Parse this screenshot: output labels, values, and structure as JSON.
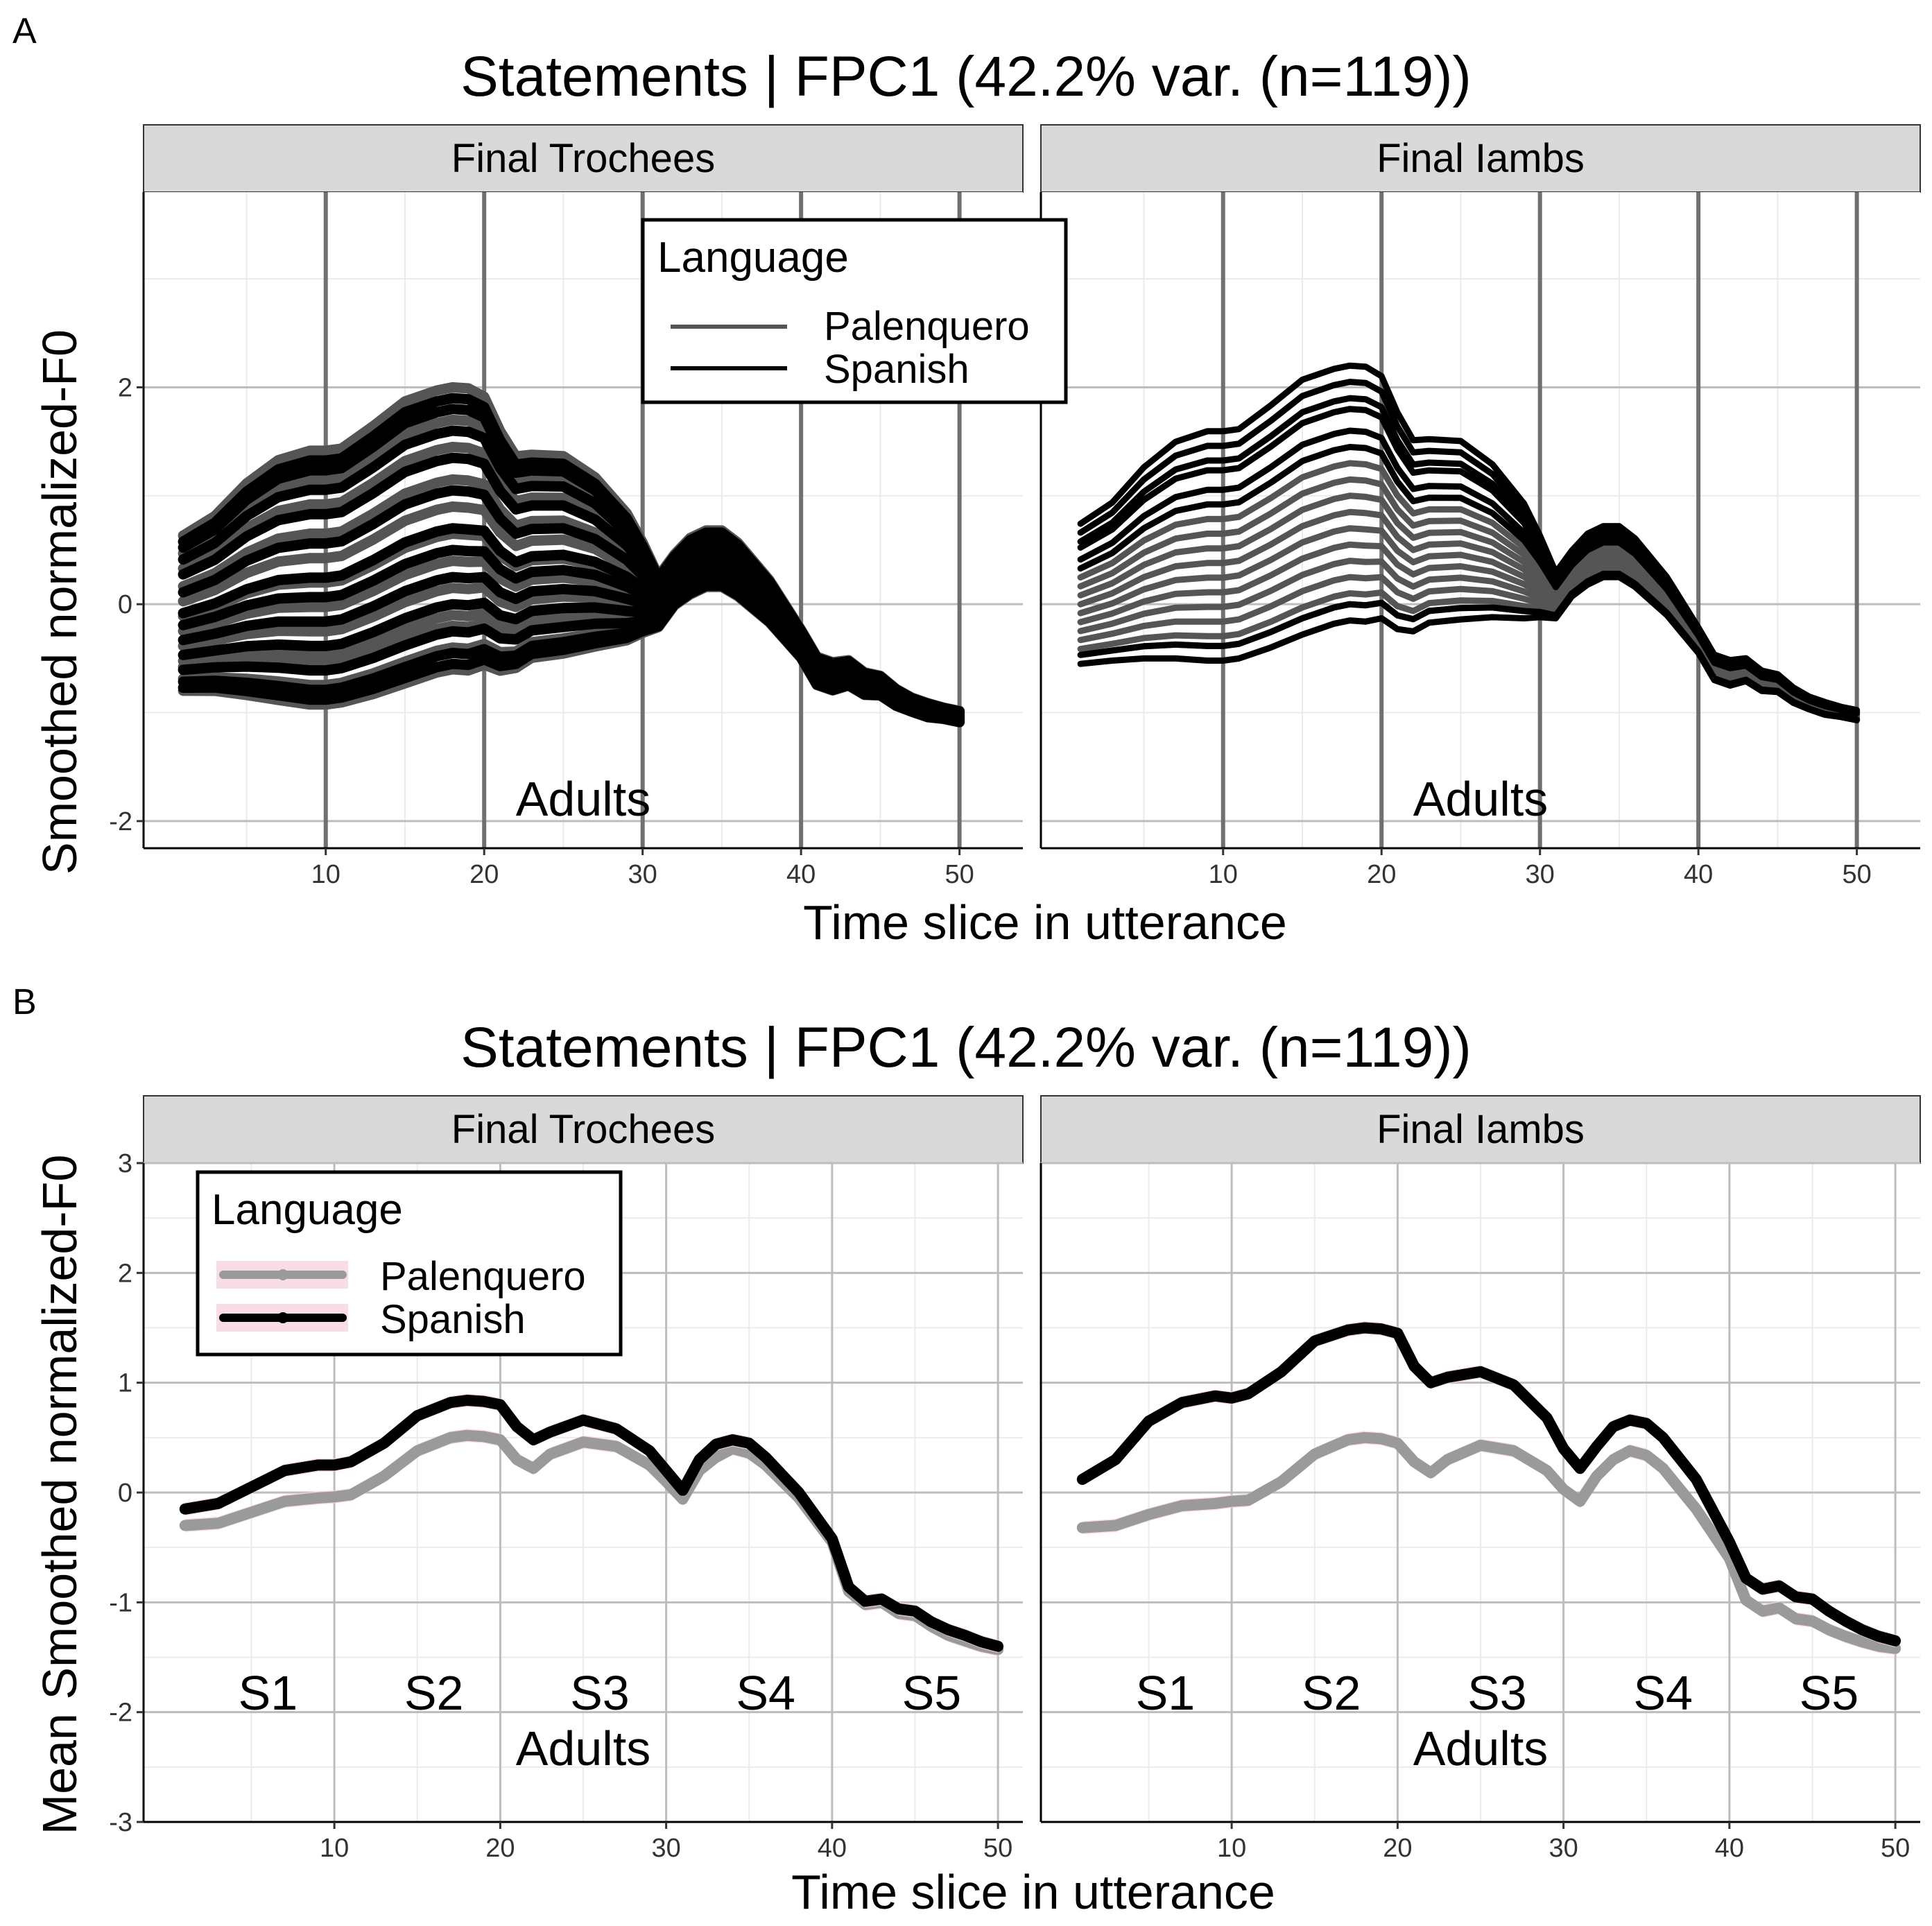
{
  "colors": {
    "palenquero": "#555555",
    "spanish": "#000000",
    "palenquero_mean": "#9a9a9a",
    "ribbon": "#f7d3df",
    "strip": "#d9d9d9",
    "grid_major": "#bdbdbd",
    "grid_minor": "#ebebeb",
    "slice_line": "#707070"
  },
  "panel_a": {
    "tag": "A",
    "title": "Statements | FPC1 (42.2% var. (n=119))",
    "xlabel": "Time slice in utterance",
    "ylabel": "Smoothed normalized-F0",
    "facets": [
      "Final Trochees",
      "Final Iambs"
    ],
    "annotation": "Adults",
    "legend": {
      "title": "Language",
      "items": [
        "Palenquero",
        "Spanish"
      ]
    }
  },
  "panel_b": {
    "tag": "B",
    "title": "Statements | FPC1 (42.2% var. (n=119))",
    "xlabel": "Time slice in utterance",
    "ylabel": "Mean Smoothed normalized-F0",
    "facets": [
      "Final Trochees",
      "Final Iambs"
    ],
    "annotation": "Adults",
    "syllables": [
      "S1",
      "S2",
      "S3",
      "S4",
      "S5"
    ],
    "legend": {
      "title": "Language",
      "items": [
        "Palenquero",
        "Spanish"
      ]
    }
  },
  "chart_data": [
    {
      "type": "line",
      "title": "Statements | FPC1 (42.2% var. (n=119))",
      "xlabel": "Time slice in utterance",
      "ylabel": "Smoothed normalized-F0",
      "xlim": [
        -1.5,
        54
      ],
      "ylim": [
        -2.25,
        3.8
      ],
      "xticks": [
        10,
        20,
        30,
        40,
        50
      ],
      "yticks": [
        -2,
        0,
        2
      ],
      "vlines": [
        10,
        20,
        30,
        40,
        50
      ],
      "facets": [
        "Final Trochees",
        "Final Iambs"
      ],
      "template": {
        "x": [
          1,
          3,
          5,
          7,
          9,
          10,
          11,
          13,
          15,
          17,
          18,
          19,
          20,
          21,
          22,
          23,
          25,
          27,
          29,
          30,
          31,
          32,
          33,
          34,
          35,
          36,
          38,
          40,
          41,
          42,
          43,
          44,
          45,
          46,
          47,
          48,
          49,
          50
        ],
        "base": [
          0,
          0.1,
          0.25,
          0.35,
          0.38,
          0.38,
          0.4,
          0.55,
          0.72,
          0.82,
          0.85,
          0.84,
          0.82,
          0.62,
          0.5,
          0.55,
          0.56,
          0.48,
          0.32,
          0.2,
          0.05,
          0.25,
          0.38,
          0.45,
          0.45,
          0.35,
          0.05,
          -0.35,
          -0.6,
          -0.65,
          -0.62,
          -0.72,
          -0.74,
          -0.85,
          -0.92,
          -0.97,
          -1.0,
          -1.03
        ],
        "amp": [
          0.55,
          0.62,
          0.75,
          0.85,
          0.9,
          0.9,
          0.9,
          0.95,
          1.0,
          1.0,
          1.0,
          1.0,
          0.95,
          0.85,
          0.75,
          0.72,
          0.7,
          0.6,
          0.45,
          0.32,
          0.18,
          0.18,
          0.2,
          0.2,
          0.2,
          0.19,
          0.15,
          0.1,
          0.1,
          0.1,
          0.09,
          0.08,
          0.07,
          0.06,
          0.05,
          0.05,
          0.04,
          0.04
        ]
      },
      "curves": [
        {
          "facet": "Final Trochees",
          "series": [
            {
              "name": "Palenquero",
              "fpc_scores": [
                1.15,
                0.85,
                0.6,
                0.3,
                0.05,
                -0.2,
                -0.45,
                -0.7,
                -0.95,
                -1.05,
                -1.25,
                -1.45
              ]
            },
            {
              "name": "Spanish",
              "fpc_scores": [
                1.05,
                0.95,
                0.75,
                0.5,
                0.2,
                -0.15,
                -0.35,
                -0.6,
                -0.85,
                -1.1,
                -1.3,
                -1.4
              ]
            }
          ]
        },
        {
          "facet": "Final Iambs",
          "series": [
            {
              "name": "Palenquero",
              "fpc_scores": [
                0.45,
                0.3,
                0.15,
                0.0,
                -0.15,
                -0.3,
                -0.45,
                -0.6,
                -0.75,
                -0.85
              ]
            },
            {
              "name": "Spanish",
              "fpc_scores": [
                1.35,
                1.2,
                1.05,
                0.95,
                0.75,
                0.6,
                -0.85,
                -1.0
              ]
            }
          ]
        }
      ]
    },
    {
      "type": "line",
      "title": "Statements | FPC1 (42.2% var. (n=119))",
      "xlabel": "Time slice in utterance",
      "ylabel": "Mean Smoothed normalized-F0",
      "xlim": [
        -1.5,
        51.5
      ],
      "ylim": [
        -3,
        3
      ],
      "xticks": [
        10,
        20,
        30,
        40,
        50
      ],
      "yticks": [
        -3,
        -2,
        -1,
        0,
        1,
        2,
        3
      ],
      "facets": [
        "Final Trochees",
        "Final Iambs"
      ],
      "series": [
        {
          "facet": "Final Trochees",
          "name": "Palenquero",
          "x": [
            1,
            3,
            5,
            7,
            9,
            10,
            11,
            13,
            15,
            17,
            18,
            19,
            20,
            21,
            22,
            23,
            25,
            27,
            29,
            30,
            31,
            32,
            33,
            34,
            35,
            36,
            38,
            40,
            41,
            42,
            43,
            44,
            45,
            46,
            47,
            48,
            49,
            50
          ],
          "y": [
            -0.3,
            -0.28,
            -0.18,
            -0.08,
            -0.05,
            -0.04,
            -0.02,
            0.15,
            0.38,
            0.5,
            0.52,
            0.51,
            0.48,
            0.3,
            0.22,
            0.35,
            0.46,
            0.42,
            0.25,
            0.1,
            -0.06,
            0.2,
            0.32,
            0.4,
            0.36,
            0.25,
            -0.05,
            -0.45,
            -0.9,
            -1.02,
            -1.0,
            -1.1,
            -1.12,
            -1.22,
            -1.3,
            -1.35,
            -1.4,
            -1.43
          ]
        },
        {
          "facet": "Final Trochees",
          "name": "Spanish",
          "x": [
            1,
            3,
            5,
            7,
            9,
            10,
            11,
            13,
            15,
            17,
            18,
            19,
            20,
            21,
            22,
            23,
            25,
            27,
            29,
            30,
            31,
            32,
            33,
            34,
            35,
            36,
            38,
            40,
            41,
            42,
            43,
            44,
            45,
            46,
            47,
            48,
            49,
            50
          ],
          "y": [
            -0.15,
            -0.1,
            0.05,
            0.2,
            0.25,
            0.25,
            0.28,
            0.45,
            0.7,
            0.82,
            0.84,
            0.83,
            0.8,
            0.6,
            0.48,
            0.55,
            0.66,
            0.58,
            0.38,
            0.2,
            0.02,
            0.3,
            0.44,
            0.48,
            0.45,
            0.32,
            0.0,
            -0.42,
            -0.86,
            -0.99,
            -0.97,
            -1.06,
            -1.08,
            -1.18,
            -1.25,
            -1.3,
            -1.36,
            -1.4
          ]
        },
        {
          "facet": "Final Iambs",
          "name": "Palenquero",
          "x": [
            1,
            3,
            5,
            7,
            9,
            10,
            11,
            13,
            15,
            17,
            18,
            19,
            20,
            21,
            22,
            23,
            25,
            27,
            29,
            30,
            31,
            32,
            33,
            34,
            35,
            36,
            38,
            40,
            41,
            42,
            43,
            44,
            45,
            46,
            47,
            48,
            49,
            50
          ],
          "y": [
            -0.32,
            -0.3,
            -0.2,
            -0.12,
            -0.1,
            -0.08,
            -0.07,
            0.1,
            0.35,
            0.48,
            0.5,
            0.49,
            0.45,
            0.28,
            0.18,
            0.3,
            0.43,
            0.38,
            0.2,
            0.03,
            -0.08,
            0.15,
            0.3,
            0.38,
            0.34,
            0.22,
            -0.15,
            -0.6,
            -0.98,
            -1.08,
            -1.05,
            -1.15,
            -1.17,
            -1.25,
            -1.31,
            -1.36,
            -1.4,
            -1.42
          ]
        },
        {
          "facet": "Final Iambs",
          "name": "Spanish",
          "x": [
            1,
            3,
            5,
            7,
            9,
            10,
            11,
            13,
            15,
            17,
            18,
            19,
            20,
            21,
            22,
            23,
            25,
            27,
            29,
            30,
            31,
            32,
            33,
            34,
            35,
            36,
            38,
            40,
            41,
            42,
            43,
            44,
            45,
            46,
            47,
            48,
            49,
            50
          ],
          "y": [
            0.12,
            0.3,
            0.65,
            0.82,
            0.88,
            0.86,
            0.9,
            1.1,
            1.38,
            1.48,
            1.5,
            1.49,
            1.45,
            1.15,
            1.0,
            1.05,
            1.1,
            0.98,
            0.68,
            0.4,
            0.22,
            0.42,
            0.6,
            0.66,
            0.63,
            0.5,
            0.12,
            -0.45,
            -0.78,
            -0.88,
            -0.85,
            -0.95,
            -0.97,
            -1.08,
            -1.17,
            -1.25,
            -1.31,
            -1.35
          ]
        }
      ],
      "annotations": [
        "S1",
        "S2",
        "S3",
        "S4",
        "S5",
        "Adults"
      ]
    }
  ]
}
